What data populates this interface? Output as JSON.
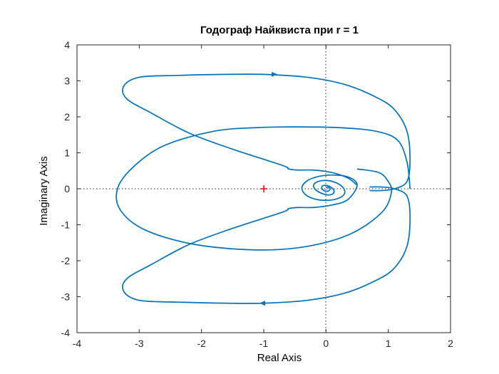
{
  "chart_data": {
    "type": "line",
    "title": "Годограф Найквиста при r = 1",
    "xlabel": "Real Axis",
    "ylabel": "Imaginary Axis",
    "xlim": [
      -4,
      2
    ],
    "ylim": [
      -4,
      4
    ],
    "xticks": [
      "-4",
      "-3",
      "-2",
      "-1",
      "0",
      "1",
      "2"
    ],
    "yticks": [
      "4",
      "3",
      "2",
      "1",
      "0",
      "-1",
      "-2",
      "-3",
      "-4"
    ],
    "grid": false,
    "zero_lines": "dotted",
    "series": [
      {
        "color": "#0072bd",
        "x": [
          0.0,
          0.03,
          0.06,
          0.05,
          0.0,
          -0.05,
          -0.07,
          -0.04,
          0.02,
          0.09,
          0.13,
          0.11,
          0.03,
          -0.08,
          -0.17,
          -0.2,
          -0.13,
          0.01,
          0.16,
          0.27,
          0.3,
          0.22,
          0.04,
          -0.19,
          -0.35,
          -0.38,
          -0.24,
          0.04,
          0.35,
          0.5,
          0.35,
          0.1,
          -0.2,
          -0.45,
          -0.6,
          -0.7,
          -1.5,
          -2.2,
          -2.8,
          -3.2,
          -3.25,
          -3.0,
          -2.4,
          -1.6,
          -1.0,
          -0.3,
          0.3,
          0.8,
          1.1,
          1.3,
          1.35,
          1.3,
          1.1,
          0.9,
          0.7
        ],
        "y": [
          0.02,
          0.05,
          0.01,
          -0.05,
          -0.07,
          -0.03,
          0.04,
          0.09,
          0.09,
          0.03,
          -0.06,
          -0.14,
          -0.17,
          -0.12,
          -0.02,
          0.1,
          0.2,
          0.23,
          0.17,
          0.04,
          -0.12,
          -0.25,
          -0.32,
          -0.28,
          -0.13,
          0.08,
          0.28,
          0.38,
          0.33,
          0.1,
          -0.3,
          -0.45,
          -0.52,
          -0.52,
          -0.55,
          -0.65,
          -1.1,
          -1.55,
          -2.1,
          -2.5,
          -2.85,
          -3.1,
          -3.15,
          -3.18,
          -3.18,
          -3.1,
          -2.9,
          -2.55,
          -2.2,
          -1.6,
          -0.8,
          -0.2,
          0.0,
          0.05,
          0.05
        ]
      },
      {
        "color": "#0072bd",
        "x": [
          0.7,
          0.9,
          1.1,
          1.3,
          1.35,
          1.3,
          1.1,
          0.8,
          0.3,
          -0.3,
          -1.0,
          -1.6,
          -2.4,
          -3.0,
          -3.25,
          -3.2,
          -2.8,
          -2.2,
          -1.5,
          -0.7,
          -0.6,
          -0.45,
          -0.2,
          0.1,
          0.35,
          0.5
        ],
        "y": [
          -0.05,
          -0.05,
          0.0,
          0.2,
          0.8,
          1.6,
          2.2,
          2.55,
          2.9,
          3.1,
          3.18,
          3.18,
          3.15,
          3.1,
          2.85,
          2.5,
          2.1,
          1.55,
          1.1,
          0.65,
          0.55,
          0.52,
          0.52,
          0.45,
          0.3,
          0.1
        ]
      },
      {
        "color": "#0072bd",
        "x": [
          1.35,
          1.3,
          1.15,
          0.8,
          0.2,
          -0.5,
          -1.1,
          -1.8,
          -2.6,
          -3.1,
          -3.35,
          -3.3,
          -2.9,
          -2.1,
          -1.1,
          -0.3,
          0.4,
          0.9,
          1.05,
          1.0,
          0.85,
          0.5
        ],
        "y": [
          0.0,
          0.75,
          1.35,
          1.6,
          1.7,
          1.72,
          1.7,
          1.6,
          1.2,
          0.6,
          0.0,
          -0.6,
          -1.15,
          -1.55,
          -1.7,
          -1.6,
          -1.25,
          -0.65,
          -0.1,
          0.2,
          0.45,
          0.55
        ]
      }
    ],
    "markers": [
      {
        "shape": "plus",
        "color": "#ff0000",
        "x": -1,
        "y": 0
      }
    ],
    "arrows": [
      {
        "color": "#0072bd",
        "x": -0.85,
        "y": 3.18,
        "direction": "right"
      },
      {
        "color": "#0072bd",
        "x": -1.0,
        "y": -3.18,
        "direction": "left"
      }
    ]
  }
}
